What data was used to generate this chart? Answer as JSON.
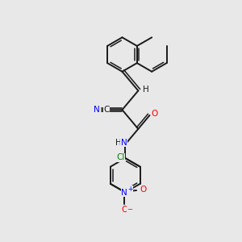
{
  "bg_color": "#e8e8e8",
  "bond_color": "#1a1a1a",
  "N_color": "#0000ff",
  "O_color": "#ff0000",
  "Cl_color": "#008000",
  "figsize": [
    3.0,
    3.0
  ],
  "dpi": 100,
  "xlim": [
    0,
    10
  ],
  "ylim": [
    0,
    10
  ],
  "lw": 1.4,
  "lw2": 1.1
}
